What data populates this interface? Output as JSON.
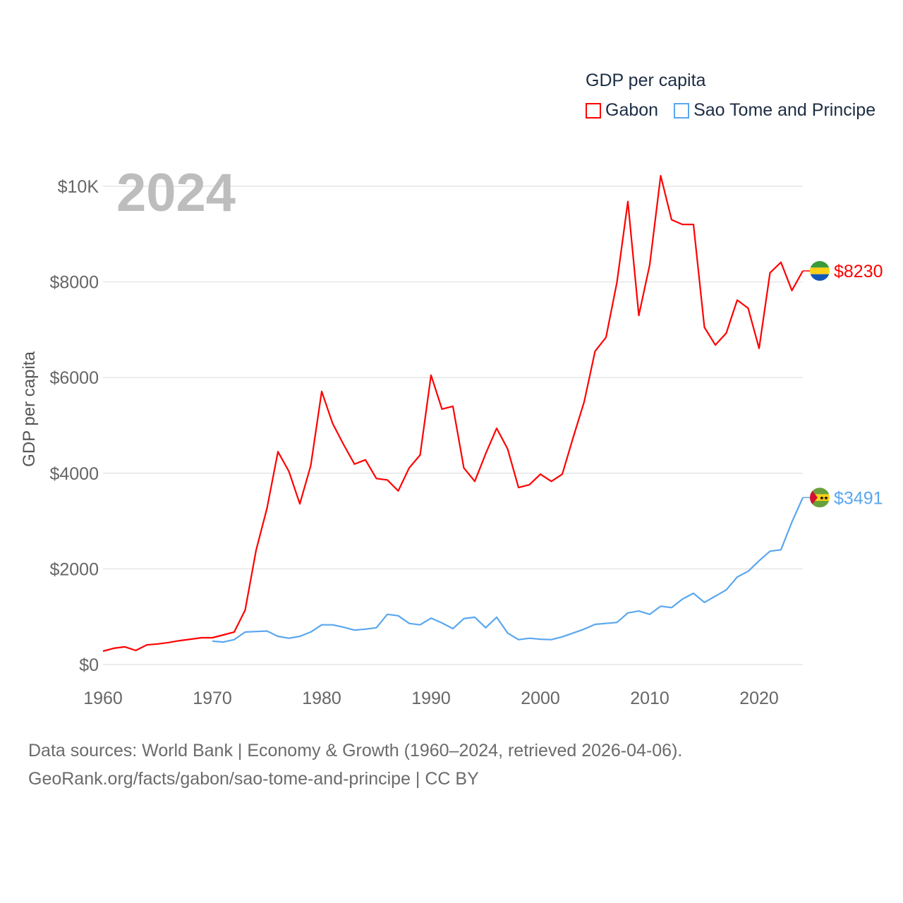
{
  "chart_data": {
    "type": "line",
    "title": "GDP per capita",
    "year_label": "2024",
    "ylabel": "GDP per capita",
    "xlabel": "",
    "xlim": [
      1960,
      2024
    ],
    "ylim": [
      0,
      10000
    ],
    "x_ticks": [
      "1960",
      "1970",
      "1980",
      "1990",
      "2000",
      "2010",
      "2020"
    ],
    "y_ticks": [
      {
        "v": 0,
        "label": "$0"
      },
      {
        "v": 2000,
        "label": "$2000"
      },
      {
        "v": 4000,
        "label": "$4000"
      },
      {
        "v": 6000,
        "label": "$6000"
      },
      {
        "v": 8000,
        "label": "$8000"
      },
      {
        "v": 10000,
        "label": "$10K"
      }
    ],
    "grid": true,
    "legend_position": "top-right",
    "series": [
      {
        "name": "Gabon",
        "color": "#ff0000",
        "end_label": "$8230",
        "start_year": 1960,
        "values": [
          280,
          340,
          370,
          295,
          410,
          430,
          460,
          500,
          530,
          560,
          560,
          620,
          680,
          1140,
          2390,
          3270,
          4450,
          4040,
          3360,
          4160,
          5710,
          5040,
          4600,
          4190,
          4280,
          3890,
          3860,
          3630,
          4110,
          4380,
          6050,
          5340,
          5400,
          4110,
          3830,
          4410,
          4940,
          4510,
          3700,
          3760,
          3980,
          3830,
          3980,
          4750,
          5490,
          6550,
          6840,
          7990,
          9680,
          7300,
          8360,
          10220,
          9300,
          9200,
          9200,
          7050,
          6680,
          6930,
          7620,
          7450,
          6610,
          8190,
          8410,
          7820,
          8230
        ]
      },
      {
        "name": "Sao Tome and Principe",
        "color": "#5aa7ee",
        "end_label": "$3491",
        "start_year": 1970,
        "values": [
          490,
          470,
          520,
          680,
          690,
          700,
          590,
          550,
          590,
          680,
          830,
          830,
          780,
          720,
          740,
          770,
          1050,
          1020,
          860,
          830,
          970,
          870,
          750,
          960,
          990,
          770,
          990,
          660,
          520,
          550,
          530,
          520,
          580,
          660,
          740,
          840,
          860,
          880,
          1080,
          1120,
          1050,
          1220,
          1190,
          1370,
          1490,
          1300,
          1430,
          1560,
          1830,
          1950,
          2170,
          2370,
          2400,
          2980,
          3491
        ]
      }
    ]
  },
  "footer": {
    "line1": "Data sources: World Bank | Economy & Growth (1960–2024, retrieved 2026-04-06).",
    "line2": "GeoRank.org/facts/gabon/sao-tome-and-principe | CC BY"
  }
}
